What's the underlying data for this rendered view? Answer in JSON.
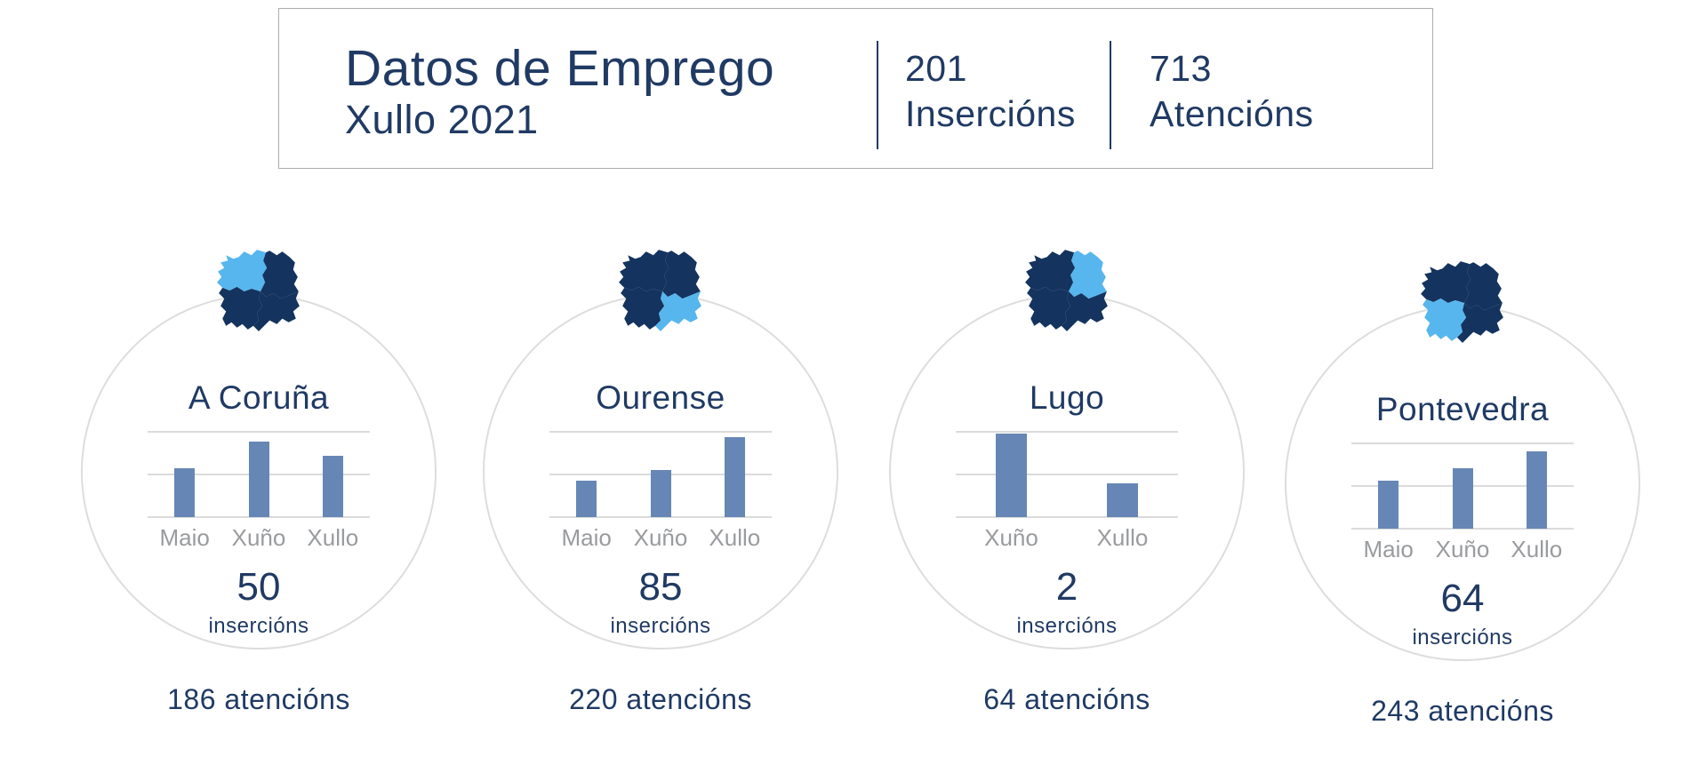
{
  "header": {
    "title": "Datos de Emprego",
    "subtitle": "Xullo 2021",
    "stats": [
      {
        "value": "201",
        "label": "Insercións"
      },
      {
        "value": "713",
        "label": "Atencións"
      }
    ]
  },
  "cards": [
    {
      "province": "A Coruña",
      "map_highlight": "coruna",
      "insertions": "50",
      "insertions_label": "insercións",
      "attention": "186 atencións",
      "chart": {
        "categories": [
          "Maio",
          "Xuño",
          "Xullo"
        ],
        "heights_pct": [
          57,
          89,
          72
        ]
      }
    },
    {
      "province": "Ourense",
      "map_highlight": "ourense",
      "insertions": "85",
      "insertions_label": "insercións",
      "attention": "220 atencións",
      "chart": {
        "categories": [
          "Maio",
          "Xuño",
          "Xullo"
        ],
        "heights_pct": [
          43,
          55,
          94
        ]
      }
    },
    {
      "province": "Lugo",
      "map_highlight": "lugo",
      "insertions": "2",
      "insertions_label": "insercións",
      "attention": "64 atencións",
      "chart": {
        "categories": [
          "Xuño",
          "Xullo"
        ],
        "heights_pct": [
          98,
          40
        ]
      }
    },
    {
      "province": "Pontevedra",
      "map_highlight": "pontevedra",
      "insertions": "64",
      "insertions_label": "insercións",
      "attention": "243 atencións",
      "chart": {
        "categories": [
          "Maio",
          "Xuño",
          "Xullo"
        ],
        "heights_pct": [
          56,
          71,
          91
        ]
      }
    }
  ],
  "chart_data": [
    {
      "type": "bar",
      "title": "A Coruña",
      "categories": [
        "Maio",
        "Xuño",
        "Xullo"
      ],
      "values": [
        57,
        89,
        72
      ],
      "values_unit": "percent of top gridline (no numeric axis shown)",
      "labeled_totals": {
        "insercions": 50,
        "atencions": 186
      },
      "ylim": [
        0,
        100
      ],
      "grid": true,
      "legend": false
    },
    {
      "type": "bar",
      "title": "Ourense",
      "categories": [
        "Maio",
        "Xuño",
        "Xullo"
      ],
      "values": [
        43,
        55,
        94
      ],
      "values_unit": "percent of top gridline (no numeric axis shown)",
      "labeled_totals": {
        "insercions": 85,
        "atencions": 220
      },
      "ylim": [
        0,
        100
      ],
      "grid": true,
      "legend": false
    },
    {
      "type": "bar",
      "title": "Lugo",
      "categories": [
        "Xuño",
        "Xullo"
      ],
      "values": [
        98,
        40
      ],
      "values_unit": "percent of top gridline (no numeric axis shown)",
      "labeled_totals": {
        "insercions": 2,
        "atencions": 64
      },
      "ylim": [
        0,
        100
      ],
      "grid": true,
      "legend": false
    },
    {
      "type": "bar",
      "title": "Pontevedra",
      "categories": [
        "Maio",
        "Xuño",
        "Xullo"
      ],
      "values": [
        56,
        71,
        91
      ],
      "values_unit": "percent of top gridline (no numeric axis shown)",
      "labeled_totals": {
        "insercions": 64,
        "atencions": 243
      },
      "ylim": [
        0,
        100
      ],
      "grid": true,
      "legend": false
    }
  ],
  "colors": {
    "navy": "#203A64",
    "map_base": "#14335E",
    "map_highlight": "#57B6ED",
    "bar": "#6687B5",
    "grid": "#DBDBDB",
    "circle_border": "#DDDDDD",
    "month_label": "#999B9E",
    "header_border": "#ACACAC"
  }
}
